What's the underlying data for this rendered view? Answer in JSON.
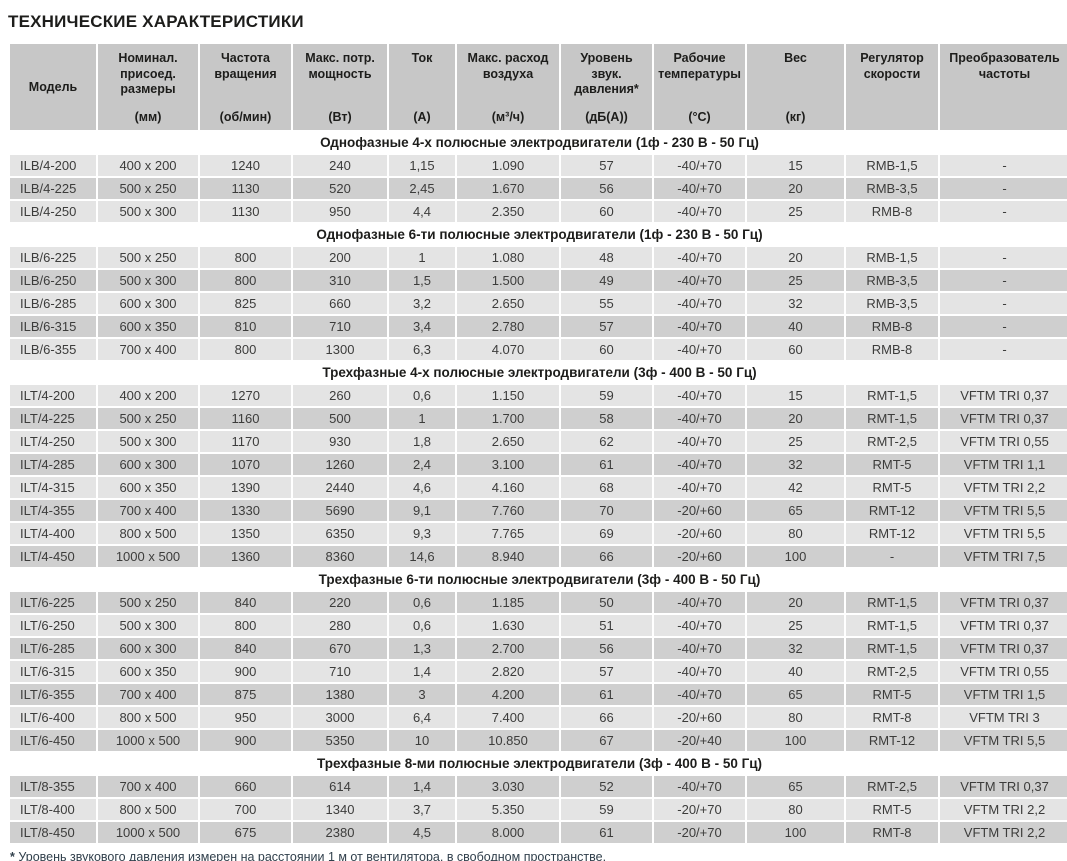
{
  "title": "ТЕХНИЧЕСКИЕ ХАРАКТЕРИСТИКИ",
  "colors": {
    "header_cell": "#c7c7c7",
    "row_light": "#e4e4e4",
    "row_dark": "#cfcfcf",
    "section_text": "#1d1d1b",
    "body_text": "#3c3c3b",
    "footnote_text": "#31404c"
  },
  "table": {
    "columns": [
      {
        "label": "Модель",
        "unit": ""
      },
      {
        "label": "Номинал. присоед. размеры",
        "unit": "(мм)"
      },
      {
        "label": "Частота вращения",
        "unit": "(об/мин)"
      },
      {
        "label": "Макс. потр. мощность",
        "unit": "(Вт)"
      },
      {
        "label": "Ток",
        "unit": "(А)"
      },
      {
        "label": "Макс. расход воздуха",
        "unit": "(м³/ч)"
      },
      {
        "label": "Уровень звук. давления*",
        "unit": "(дБ(А))"
      },
      {
        "label": "Рабочие температуры",
        "unit": "(°С)"
      },
      {
        "label": "Вес",
        "unit": "(кг)"
      },
      {
        "label": "Регулятор скорости",
        "unit": ""
      },
      {
        "label": "Преобразователь частоты",
        "unit": ""
      }
    ],
    "sections": [
      {
        "title": "Однофазные 4-х полюсные электродвигатели (1ф - 230 В - 50 Гц)",
        "rows": [
          [
            "ILB/4-200",
            "400 x 200",
            "1240",
            "240",
            "1,15",
            "1.090",
            "57",
            "-40/+70",
            "15",
            "RMB-1,5",
            "-"
          ],
          [
            "ILB/4-225",
            "500 x 250",
            "1130",
            "520",
            "2,45",
            "1.670",
            "56",
            "-40/+70",
            "20",
            "RMB-3,5",
            "-"
          ],
          [
            "ILB/4-250",
            "500 x 300",
            "1130",
            "950",
            "4,4",
            "2.350",
            "60",
            "-40/+70",
            "25",
            "RMB-8",
            "-"
          ]
        ]
      },
      {
        "title": "Однофазные 6-ти полюсные электродвигатели (1ф - 230 В - 50 Гц)",
        "rows": [
          [
            "ILB/6-225",
            "500 x 250",
            "800",
            "200",
            "1",
            "1.080",
            "48",
            "-40/+70",
            "20",
            "RMB-1,5",
            "-"
          ],
          [
            "ILB/6-250",
            "500 x 300",
            "800",
            "310",
            "1,5",
            "1.500",
            "49",
            "-40/+70",
            "25",
            "RMB-3,5",
            "-"
          ],
          [
            "ILB/6-285",
            "600 x 300",
            "825",
            "660",
            "3,2",
            "2.650",
            "55",
            "-40/+70",
            "32",
            "RMB-3,5",
            "-"
          ],
          [
            "ILB/6-315",
            "600 x 350",
            "810",
            "710",
            "3,4",
            "2.780",
            "57",
            "-40/+70",
            "40",
            "RMB-8",
            "-"
          ],
          [
            "ILB/6-355",
            "700 x 400",
            "800",
            "1300",
            "6,3",
            "4.070",
            "60",
            "-40/+70",
            "60",
            "RMB-8",
            "-"
          ]
        ]
      },
      {
        "title": "Трехфазные 4-х полюсные электродвигатели (3ф - 400 В - 50 Гц)",
        "rows": [
          [
            "ILT/4-200",
            "400 x 200",
            "1270",
            "260",
            "0,6",
            "1.150",
            "59",
            "-40/+70",
            "15",
            "RMT-1,5",
            "VFTM TRI 0,37"
          ],
          [
            "ILT/4-225",
            "500 x 250",
            "1160",
            "500",
            "1",
            "1.700",
            "58",
            "-40/+70",
            "20",
            "RMT-1,5",
            "VFTM TRI 0,37"
          ],
          [
            "ILT/4-250",
            "500 x 300",
            "1170",
            "930",
            "1,8",
            "2.650",
            "62",
            "-40/+70",
            "25",
            "RMT-2,5",
            "VFTM TRI 0,55"
          ],
          [
            "ILT/4-285",
            "600 x 300",
            "1070",
            "1260",
            "2,4",
            "3.100",
            "61",
            "-40/+70",
            "32",
            "RMT-5",
            "VFTM TRI 1,1"
          ],
          [
            "ILT/4-315",
            "600 x 350",
            "1390",
            "2440",
            "4,6",
            "4.160",
            "68",
            "-40/+70",
            "42",
            "RMT-5",
            "VFTM TRI 2,2"
          ],
          [
            "ILT/4-355",
            "700 x 400",
            "1330",
            "5690",
            "9,1",
            "7.760",
            "70",
            "-20/+60",
            "65",
            "RMT-12",
            "VFTM TRI 5,5"
          ],
          [
            "ILT/4-400",
            "800 x 500",
            "1350",
            "6350",
            "9,3",
            "7.765",
            "69",
            "-20/+60",
            "80",
            "RMT-12",
            "VFTM TRI 5,5"
          ],
          [
            "ILT/4-450",
            "1000 x 500",
            "1360",
            "8360",
            "14,6",
            "8.940",
            "66",
            "-20/+60",
            "100",
            "-",
            "VFTM TRI 7,5"
          ]
        ]
      },
      {
        "title": "Трехфазные 6-ти полюсные электродвигатели (3ф - 400 В - 50 Гц)",
        "rows": [
          [
            "ILT/6-225",
            "500 x 250",
            "840",
            "220",
            "0,6",
            "1.185",
            "50",
            "-40/+70",
            "20",
            "RMT-1,5",
            "VFTM TRI 0,37"
          ],
          [
            "ILT/6-250",
            "500 x 300",
            "800",
            "280",
            "0,6",
            "1.630",
            "51",
            "-40/+70",
            "25",
            "RMT-1,5",
            "VFTM TRI 0,37"
          ],
          [
            "ILT/6-285",
            "600 x 300",
            "840",
            "670",
            "1,3",
            "2.700",
            "56",
            "-40/+70",
            "32",
            "RMT-1,5",
            "VFTM TRI 0,37"
          ],
          [
            "ILT/6-315",
            "600 x 350",
            "900",
            "710",
            "1,4",
            "2.820",
            "57",
            "-40/+70",
            "40",
            "RMT-2,5",
            "VFTM TRI 0,55"
          ],
          [
            "ILT/6-355",
            "700 x 400",
            "875",
            "1380",
            "3",
            "4.200",
            "61",
            "-40/+70",
            "65",
            "RMT-5",
            "VFTM TRI 1,5"
          ],
          [
            "ILT/6-400",
            "800 x 500",
            "950",
            "3000",
            "6,4",
            "7.400",
            "66",
            "-20/+60",
            "80",
            "RMT-8",
            "VFTM TRI 3"
          ],
          [
            "ILT/6-450",
            "1000 x 500",
            "900",
            "5350",
            "10",
            "10.850",
            "67",
            "-20/+40",
            "100",
            "RMT-12",
            "VFTM TRI 5,5"
          ]
        ]
      },
      {
        "title": "Трехфазные 8-ми полюсные электродвигатели (3ф - 400 В - 50 Гц)",
        "rows": [
          [
            "ILT/8-355",
            "700 x 400",
            "660",
            "614",
            "1,4",
            "3.030",
            "52",
            "-40/+70",
            "65",
            "RMT-2,5",
            "VFTM TRI 0,37"
          ],
          [
            "ILT/8-400",
            "800 x 500",
            "700",
            "1340",
            "3,7",
            "5.350",
            "59",
            "-20/+70",
            "80",
            "RMT-5",
            "VFTM TRI 2,2"
          ],
          [
            "ILT/8-450",
            "1000 x 500",
            "675",
            "2380",
            "4,5",
            "8.000",
            "61",
            "-20/+70",
            "100",
            "RMT-8",
            "VFTM TRI 2,2"
          ]
        ]
      }
    ]
  },
  "footnote": {
    "marker": "*",
    "text": "Уровень звукового давления измерен на расстоянии 1 м от вентилятора, в свободном пространстве."
  }
}
